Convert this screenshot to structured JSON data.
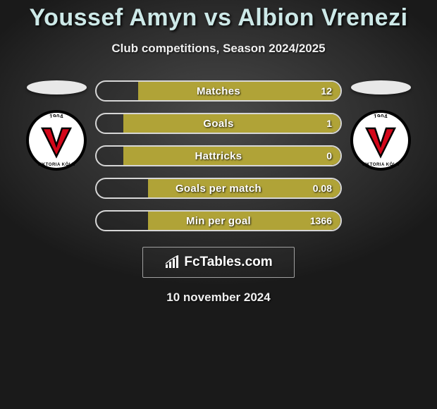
{
  "title": "Youssef Amyn vs Albion Vrenezi",
  "title_color": "#cde9e8",
  "title_fontsize": 34,
  "subtitle": "Club competitions, Season 2024/2025",
  "subtitle_color": "#f0f0f0",
  "subtitle_fontsize": 17,
  "date_text": "10 november 2024",
  "date_fontsize": 17,
  "background": {
    "type": "radial-gradient",
    "center_color": "#4a4a4a",
    "outer_color": "#1a1a1a"
  },
  "bar_fill_color": "#b0a337",
  "bar_border_color": "#d6d6d6",
  "bar_text_color": "#ffffff",
  "player_left": {
    "name": "Youssef Amyn",
    "country_flag_shape_color": "#e8e8e8",
    "club": {
      "name": "Viktoria Köln",
      "year": "1904",
      "city_text": "VIKTORIA KÖLN",
      "outer_ring_color": "#000000",
      "inner_bg_color": "#ffffff",
      "v_color": "#d4071a",
      "v_outline": "#000000"
    }
  },
  "player_right": {
    "name": "Albion Vrenezi",
    "country_flag_shape_color": "#e8e8e8",
    "club": {
      "name": "Viktoria Köln",
      "year": "1904",
      "city_text": "VIKTORIA KÖLN",
      "outer_ring_color": "#000000",
      "inner_bg_color": "#ffffff",
      "v_color": "#d4071a",
      "v_outline": "#000000"
    }
  },
  "stats": [
    {
      "label": "Matches",
      "left_value": "",
      "right_value": "12",
      "left_pct": 0,
      "right_pct": 83
    },
    {
      "label": "Goals",
      "left_value": "",
      "right_value": "1",
      "left_pct": 0,
      "right_pct": 89
    },
    {
      "label": "Hattricks",
      "left_value": "",
      "right_value": "0",
      "left_pct": 0,
      "right_pct": 89
    },
    {
      "label": "Goals per match",
      "left_value": "",
      "right_value": "0.08",
      "left_pct": 0,
      "right_pct": 79
    },
    {
      "label": "Min per goal",
      "left_value": "",
      "right_value": "1366",
      "left_pct": 0,
      "right_pct": 79
    }
  ],
  "branding": {
    "text": "FcTables.com",
    "border_color": "#a0a0a0",
    "icon_color": "#ffffff"
  }
}
